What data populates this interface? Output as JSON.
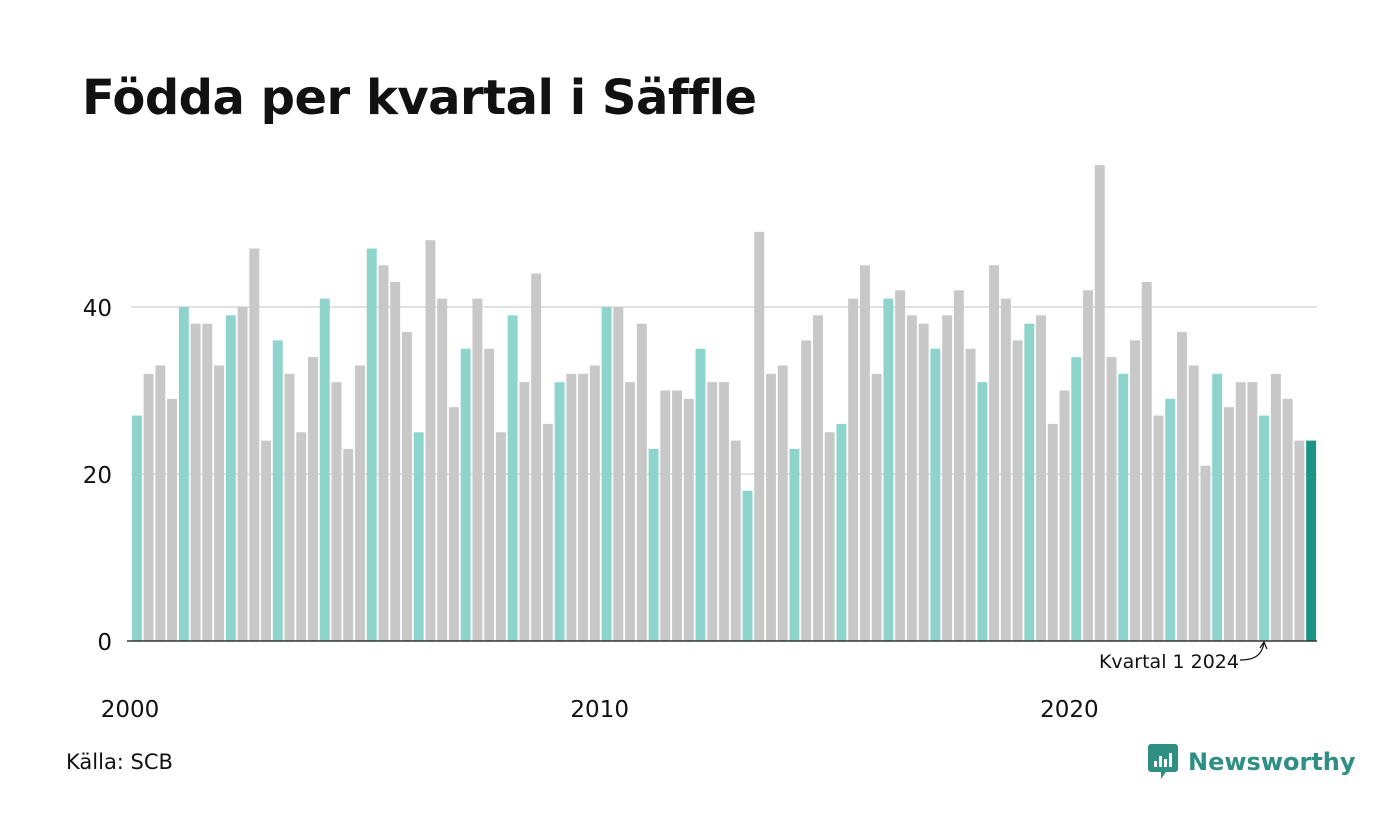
{
  "title": "Födda per kvartal i Säffle",
  "source": "Källa: SCB",
  "logo": {
    "text": "Newsworthy",
    "icon": "newsworthy-chart-icon"
  },
  "colors": {
    "q1": "#8dd5cc",
    "other": "#c8c8c8",
    "latest": "#1b9586",
    "grid": "#e2e2e2",
    "axis": "#333333",
    "brand": "#2f8f83"
  },
  "chart_data": {
    "type": "bar",
    "title": "Födda per kvartal i Säffle",
    "xlabel": "",
    "ylabel": "",
    "ylim": [
      0,
      60
    ],
    "yticks": [
      0,
      20,
      40
    ],
    "xticks": [
      {
        "year": 2000,
        "label": "2000"
      },
      {
        "year": 2010,
        "label": "2010"
      },
      {
        "year": 2020,
        "label": "2020"
      }
    ],
    "grid": true,
    "highlight": "first quarter of each year",
    "start": {
      "year": 2000,
      "quarter": 1
    },
    "values": [
      27,
      32,
      33,
      29,
      40,
      38,
      38,
      33,
      39,
      40,
      47,
      24,
      36,
      32,
      25,
      34,
      41,
      31,
      23,
      33,
      47,
      45,
      43,
      37,
      25,
      48,
      41,
      28,
      35,
      41,
      35,
      25,
      39,
      31,
      44,
      26,
      31,
      32,
      32,
      33,
      40,
      40,
      31,
      38,
      23,
      30,
      30,
      29,
      35,
      31,
      31,
      24,
      18,
      49,
      32,
      33,
      23,
      36,
      39,
      25,
      26,
      41,
      45,
      32,
      41,
      42,
      39,
      38,
      35,
      39,
      42,
      35,
      31,
      45,
      41,
      36,
      38,
      39,
      26,
      30,
      34,
      42,
      57,
      34,
      32,
      36,
      43,
      27,
      29,
      37,
      33,
      21,
      32,
      28,
      31,
      31,
      27,
      32,
      29,
      24,
      24
    ],
    "annotation": {
      "text": "Kvartal 1 2024"
    }
  }
}
